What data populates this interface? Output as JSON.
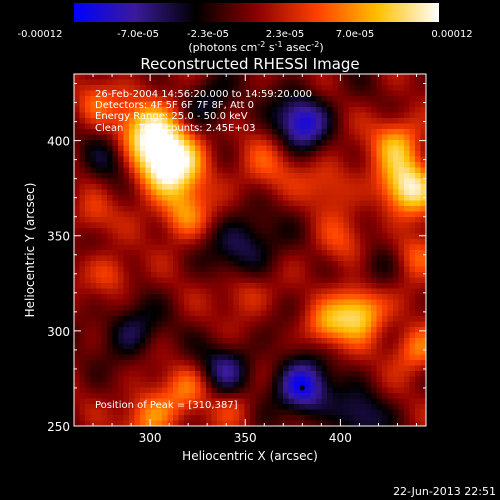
{
  "chart_data": {
    "type": "heatmap",
    "title": "Reconstructed RHESSI Image",
    "xlabel": "Heliocentric X (arcsec)",
    "ylabel": "Heliocentric Y (arcsec)",
    "xlim": [
      260,
      445
    ],
    "ylim": [
      250,
      435
    ],
    "x_ticks": [
      "300",
      "350",
      "400"
    ],
    "y_ticks": [
      "250",
      "300",
      "350",
      "400"
    ],
    "colorbar": {
      "tick_labels": [
        "-0.00012",
        "-7.0e-05",
        "-2.3e-05",
        "2.3e-05",
        "7.0e-05",
        "0.00012"
      ],
      "range": [
        -0.00012,
        0.00012
      ],
      "unit_label_main": "(photons cm",
      "unit_label_rest": [
        " s",
        " asec"
      ],
      "unit_sup": [
        "-2",
        "-1",
        "-2"
      ],
      "colors": [
        "#0000ff",
        "#3a1a9c",
        "#000000",
        "#8a0000",
        "#ff4000",
        "#ffc000",
        "#ffffff"
      ]
    },
    "annotations": [
      "26-Feb-2004 14:56:20.000 to 14:59:20.000",
      "Detectors: 4F 5F 6F 7F 8F, Att 0",
      "Energy Range: 25.0 - 50.0 keV",
      "Clean     Total counts: 2.45E+03"
    ],
    "peak_label": "Position of Peak = [310,387]",
    "peak": [
      310,
      387
    ],
    "marker": [
      380,
      270
    ],
    "features": [
      {
        "x": 310,
        "y": 387,
        "amp": 1.0,
        "s": 13
      },
      {
        "x": 300,
        "y": 405,
        "amp": 0.75,
        "s": 14
      },
      {
        "x": 318,
        "y": 360,
        "amp": 0.55,
        "s": 9
      },
      {
        "x": 435,
        "y": 375,
        "amp": 0.9,
        "s": 11
      },
      {
        "x": 430,
        "y": 400,
        "amp": 0.6,
        "s": 10
      },
      {
        "x": 440,
        "y": 340,
        "amp": 0.5,
        "s": 9
      },
      {
        "x": 400,
        "y": 345,
        "amp": 0.35,
        "s": 10
      },
      {
        "x": 360,
        "y": 385,
        "amp": 0.35,
        "s": 11
      },
      {
        "x": 395,
        "y": 378,
        "amp": 0.35,
        "s": 10
      },
      {
        "x": 410,
        "y": 310,
        "amp": 0.9,
        "s": 10
      },
      {
        "x": 392,
        "y": 302,
        "amp": 0.45,
        "s": 8
      },
      {
        "x": 440,
        "y": 290,
        "amp": 0.55,
        "s": 9
      },
      {
        "x": 300,
        "y": 255,
        "amp": 0.6,
        "s": 10
      },
      {
        "x": 320,
        "y": 270,
        "amp": 0.4,
        "s": 9
      },
      {
        "x": 280,
        "y": 330,
        "amp": 0.4,
        "s": 8
      },
      {
        "x": 350,
        "y": 320,
        "amp": 0.35,
        "s": 9
      },
      {
        "x": 270,
        "y": 360,
        "amp": 0.3,
        "s": 8
      },
      {
        "x": 345,
        "y": 260,
        "amp": 0.3,
        "s": 8
      },
      {
        "x": 270,
        "y": 420,
        "amp": 0.35,
        "s": 8
      },
      {
        "x": 380,
        "y": 410,
        "amp": -0.8,
        "s": 10
      },
      {
        "x": 380,
        "y": 270,
        "amp": -0.9,
        "s": 10
      },
      {
        "x": 340,
        "y": 280,
        "amp": -0.5,
        "s": 10
      },
      {
        "x": 350,
        "y": 345,
        "amp": -0.5,
        "s": 12
      },
      {
        "x": 290,
        "y": 300,
        "amp": -0.45,
        "s": 10
      },
      {
        "x": 410,
        "y": 255,
        "amp": -0.45,
        "s": 10
      },
      {
        "x": 280,
        "y": 390,
        "amp": -0.4,
        "s": 10
      },
      {
        "x": 420,
        "y": 335,
        "amp": -0.35,
        "s": 10
      },
      {
        "x": 330,
        "y": 420,
        "amp": -0.45,
        "s": 10
      }
    ]
  },
  "footer_timestamp": "22-Jun-2013 22:51"
}
